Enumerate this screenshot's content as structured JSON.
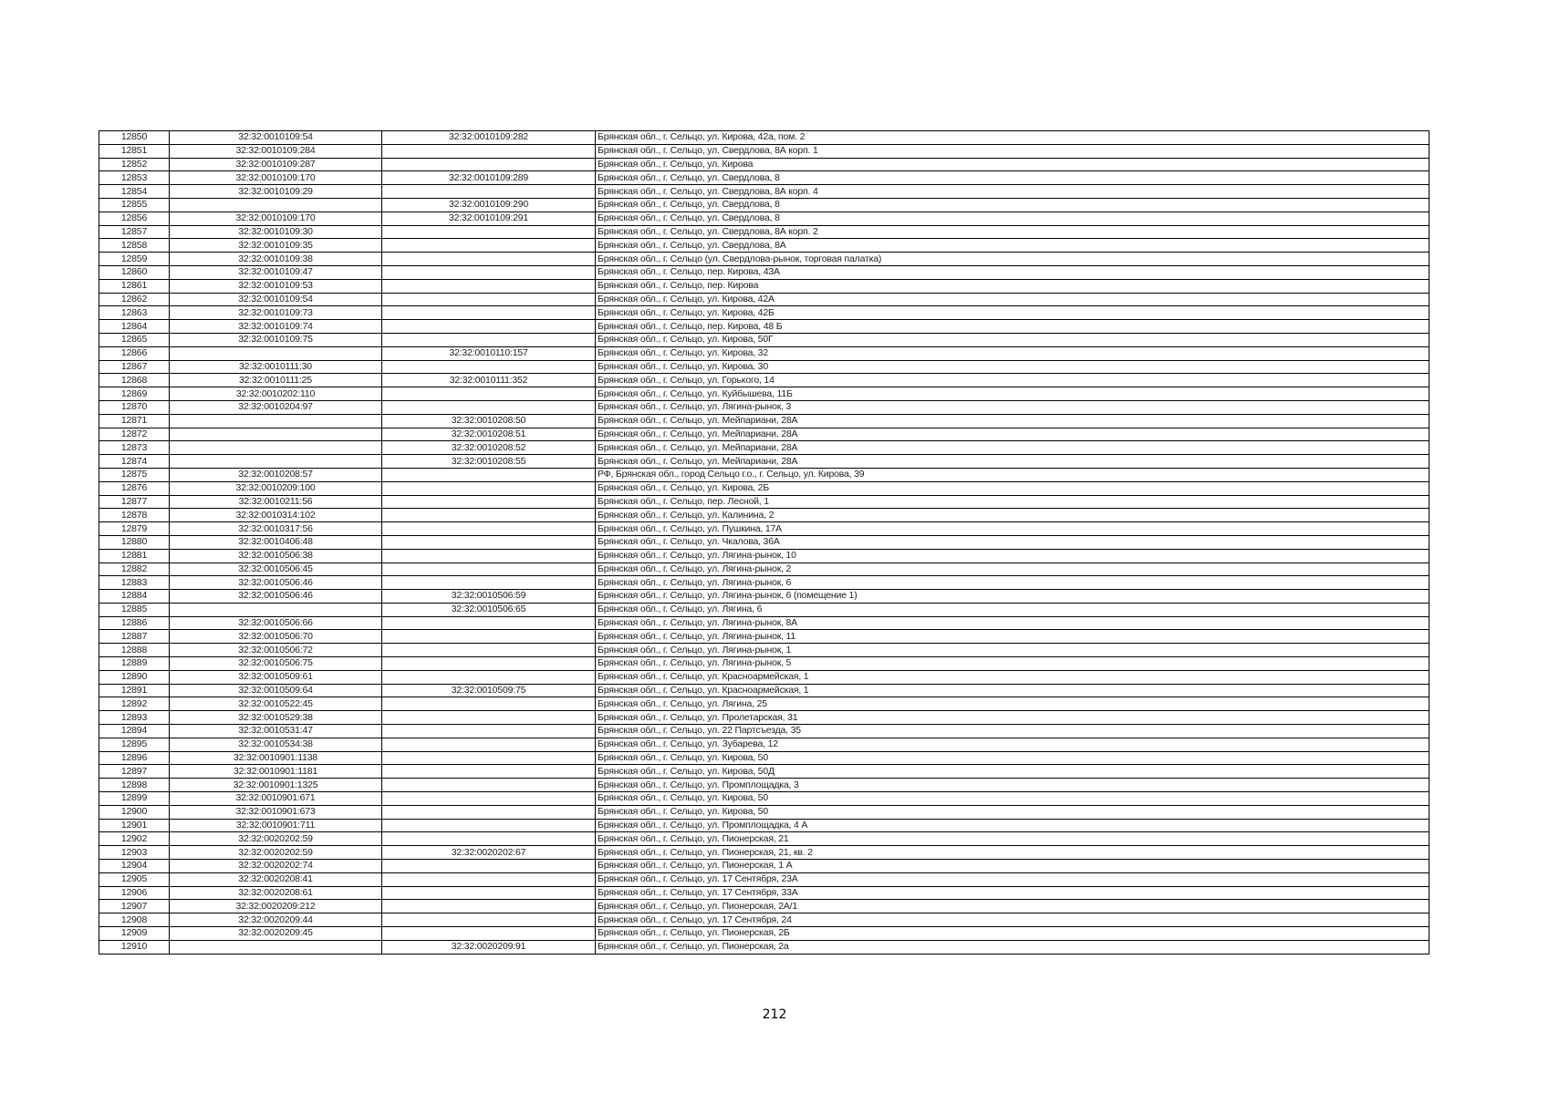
{
  "page_number": "212",
  "rows": [
    [
      "12850",
      "32:32:0010109:54",
      "32:32:0010109:282",
      "Брянская обл., г. Сельцо, ул. Кирова, 42а, пом. 2"
    ],
    [
      "12851",
      "32:32:0010109:284",
      "",
      "Брянская обл., г. Сельцо, ул. Свердлова, 8А корп. 1"
    ],
    [
      "12852",
      "32:32:0010109:287",
      "",
      "Брянская обл., г. Сельцо, ул. Кирова"
    ],
    [
      "12853",
      "32:32:0010109:170",
      "32:32:0010109:289",
      "Брянская обл., г. Сельцо, ул. Свердлова, 8"
    ],
    [
      "12854",
      "32:32:0010109:29",
      "",
      "Брянская обл., г. Сельцо, ул. Свердлова, 8А корп. 4"
    ],
    [
      "12855",
      "",
      "32:32:0010109:290",
      "Брянская обл., г. Сельцо, ул. Свердлова, 8"
    ],
    [
      "12856",
      "32:32:0010109:170",
      "32:32:0010109:291",
      "Брянская обл., г. Сельцо, ул. Свердлова, 8"
    ],
    [
      "12857",
      "32:32:0010109:30",
      "",
      "Брянская обл., г. Сельцо, ул. Свердлова, 8А корп. 2"
    ],
    [
      "12858",
      "32:32:0010109:35",
      "",
      "Брянская обл., г. Сельцо, ул. Свердлова, 8А"
    ],
    [
      "12859",
      "32:32:0010109:38",
      "",
      "Брянская обл., г. Сельцо (ул. Свердлова-рынок, торговая палатка)"
    ],
    [
      "12860",
      "32:32:0010109:47",
      "",
      "Брянская обл., г. Сельцо, пер. Кирова, 43А"
    ],
    [
      "12861",
      "32:32:0010109:53",
      "",
      "Брянская обл., г. Сельцо, пер. Кирова"
    ],
    [
      "12862",
      "32:32:0010109:54",
      "",
      "Брянская обл., г. Сельцо, ул. Кирова, 42А"
    ],
    [
      "12863",
      "32:32:0010109:73",
      "",
      "Брянская обл., г. Сельцо, ул. Кирова, 42Б"
    ],
    [
      "12864",
      "32:32:0010109:74",
      "",
      "Брянская обл., г. Сельцо, пер. Кирова, 48 Б"
    ],
    [
      "12865",
      "32:32:0010109:75",
      "",
      "Брянская обл., г. Сельцо, ул. Кирова, 50Г"
    ],
    [
      "12866",
      "",
      "32:32:0010110:157",
      "Брянская обл., г. Сельцо, ул. Кирова, 32"
    ],
    [
      "12867",
      "32:32:0010111:30",
      "",
      "Брянская обл., г. Сельцо, ул. Кирова, 30"
    ],
    [
      "12868",
      "32:32:0010111:25",
      "32:32:0010111:352",
      "Брянская обл., г. Сельцо, ул. Горького, 14"
    ],
    [
      "12869",
      "32:32:0010202:110",
      "",
      "Брянская обл., г. Сельцо, ул. Куйбышева, 11Б"
    ],
    [
      "12870",
      "32:32:0010204:97",
      "",
      "Брянская обл., г. Сельцо, ул. Лягина-рынок, 3"
    ],
    [
      "12871",
      "",
      "32:32:0010208:50",
      "Брянская обл., г. Сельцо, ул. Мейпариани, 28А"
    ],
    [
      "12872",
      "",
      "32:32:0010208:51",
      "Брянская обл., г. Сельцо, ул. Мейпариани, 28А"
    ],
    [
      "12873",
      "",
      "32:32:0010208:52",
      "Брянская обл., г. Сельцо, ул. Мейпариани, 28А"
    ],
    [
      "12874",
      "",
      "32:32:0010208:55",
      "Брянская обл., г. Сельцо, ул. Мейпариани, 28А"
    ],
    [
      "12875",
      "32:32:0010208:57",
      "",
      "РФ, Брянская обл., город Сельцо г.о., г. Сельцо, ул. Кирова, 39"
    ],
    [
      "12876",
      "32:32:0010209:100",
      "",
      "Брянская обл., г. Сельцо, ул. Кирова, 2Б"
    ],
    [
      "12877",
      "32:32:0010211:56",
      "",
      "Брянская обл., г. Сельцо, пер. Лесной, 1"
    ],
    [
      "12878",
      "32:32:0010314:102",
      "",
      "Брянская обл., г. Сельцо, ул. Калинина, 2"
    ],
    [
      "12879",
      "32:32:0010317:56",
      "",
      "Брянская обл., г. Сельцо, ул. Пушкина, 17А"
    ],
    [
      "12880",
      "32:32:0010406:48",
      "",
      "Брянская обл., г. Сельцо, ул. Чкалова, 36А"
    ],
    [
      "12881",
      "32:32:0010506:38",
      "",
      "Брянская обл., г. Сельцо, ул. Лягина-рынок, 10"
    ],
    [
      "12882",
      "32:32:0010506:45",
      "",
      "Брянская обл., г. Сельцо, ул. Лягина-рынок, 2"
    ],
    [
      "12883",
      "32:32:0010506:46",
      "",
      "Брянская обл., г. Сельцо, ул. Лягина-рынок, 6"
    ],
    [
      "12884",
      "32:32:0010506:46",
      "32:32:0010506:59",
      "Брянская обл., г. Сельцо, ул. Лягина-рынок, 6 (помещение 1)"
    ],
    [
      "12885",
      "",
      "32:32:0010506:65",
      "Брянская обл., г. Сельцо, ул. Лягина, 6"
    ],
    [
      "12886",
      "32:32:0010506:66",
      "",
      "Брянская обл., г. Сельцо, ул. Лягина-рынок, 8А"
    ],
    [
      "12887",
      "32:32:0010506:70",
      "",
      "Брянская обл., г. Сельцо, ул. Лягина-рынок, 11"
    ],
    [
      "12888",
      "32:32:0010506:72",
      "",
      "Брянская обл., г. Сельцо, ул. Лягина-рынок, 1"
    ],
    [
      "12889",
      "32:32:0010506:75",
      "",
      "Брянская обл., г. Сельцо, ул. Лягина-рынок, 5"
    ],
    [
      "12890",
      "32:32:0010509:61",
      "",
      "Брянская обл., г. Сельцо, ул. Красноармейская, 1"
    ],
    [
      "12891",
      "32:32:0010509:64",
      "32:32:0010509:75",
      "Брянская обл., г. Сельцо, ул. Красноармейская, 1"
    ],
    [
      "12892",
      "32:32:0010522:45",
      "",
      "Брянская обл., г. Сельцо, ул. Лягина, 25"
    ],
    [
      "12893",
      "32:32:0010529:38",
      "",
      "Брянская обл., г. Сельцо, ул. Пролетарская, 31"
    ],
    [
      "12894",
      "32:32:0010531:47",
      "",
      "Брянская обл., г. Сельцо, ул. 22 Партсъезда, 35"
    ],
    [
      "12895",
      "32:32:0010534:38",
      "",
      "Брянская обл., г. Сельцо, ул. Зубарева, 12"
    ],
    [
      "12896",
      "32:32:0010901:1138",
      "",
      "Брянская обл., г. Сельцо, ул. Кирова, 50"
    ],
    [
      "12897",
      "32:32:0010901:1181",
      "",
      "Брянская обл., г. Сельцо, ул. Кирова, 50Д"
    ],
    [
      "12898",
      "32:32:0010901:1325",
      "",
      "Брянская обл., г. Сельцо, ул. Промплощадка, 3"
    ],
    [
      "12899",
      "32:32:0010901:671",
      "",
      "Брянская обл., г. Сельцо, ул. Кирова, 50"
    ],
    [
      "12900",
      "32:32:0010901:673",
      "",
      "Брянская обл., г. Сельцо, ул. Кирова, 50"
    ],
    [
      "12901",
      "32:32:0010901:711",
      "",
      "Брянская обл., г. Сельцо, ул. Промплощадка, 4 А"
    ],
    [
      "12902",
      "32:32:0020202:59",
      "",
      "Брянская обл., г. Сельцо, ул. Пионерская, 21"
    ],
    [
      "12903",
      "32:32:0020202:59",
      "32:32:0020202:67",
      "Брянская обл., г. Сельцо, ул. Пионерская, 21, кв. 2"
    ],
    [
      "12904",
      "32:32:0020202:74",
      "",
      "Брянская обл., г. Сельцо, ул. Пионерская, 1 А"
    ],
    [
      "12905",
      "32:32:0020208:41",
      "",
      "Брянская обл., г. Сельцо, ул. 17 Сентября, 23А"
    ],
    [
      "12906",
      "32:32:0020208:61",
      "",
      "Брянская обл., г. Сельцо, ул. 17 Сентября, 33А"
    ],
    [
      "12907",
      "32:32:0020209:212",
      "",
      "Брянская обл., г. Сельцо, ул. Пионерская, 2А/1"
    ],
    [
      "12908",
      "32:32:0020209:44",
      "",
      "Брянская обл., г. Сельцо, ул. 17 Сентября, 24"
    ],
    [
      "12909",
      "32:32:0020209:45",
      "",
      "Брянская обл., г. Сельцо, ул. Пионерская, 2Б"
    ],
    [
      "12910",
      "",
      "32:32:0020209:91",
      "Брянская обл., г. Сельцо, ул. Пионерская, 2а"
    ]
  ]
}
